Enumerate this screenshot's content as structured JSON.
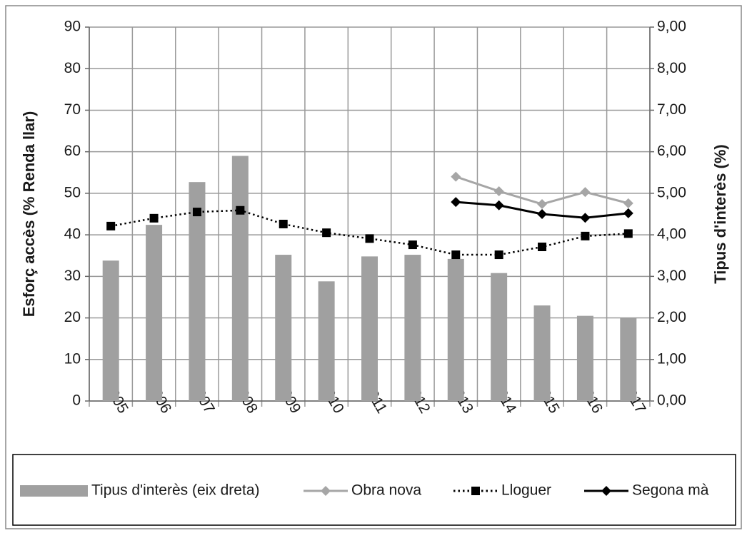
{
  "chart_data": {
    "type": "bar",
    "ylabel": "Esforç accès (% Renda llar)",
    "y2label": "Tipus d'interès (%)",
    "categories": [
      "2005",
      "2006",
      "2007",
      "2008",
      "2009",
      "2010",
      "2011",
      "2012",
      "2013",
      "2014",
      "2015",
      "2016",
      "2017"
    ],
    "series": [
      {
        "name": "Tipus d'interès (eix dreta)",
        "type": "bar",
        "axis": "y2",
        "color": "#a0a0a0",
        "values": [
          3.38,
          4.24,
          5.27,
          5.9,
          3.52,
          2.88,
          3.48,
          3.52,
          3.42,
          3.08,
          2.3,
          2.05,
          2.0
        ]
      },
      {
        "name": "Obra nova",
        "type": "line",
        "marker": "diamond",
        "color": "#a6a6a6",
        "values": [
          null,
          null,
          null,
          null,
          null,
          null,
          null,
          null,
          54.0,
          50.5,
          47.4,
          50.3,
          47.6
        ]
      },
      {
        "name": "Lloguer",
        "type": "line",
        "marker": "square",
        "dash": "dotted",
        "color": "#000000",
        "values": [
          42.1,
          44.0,
          45.5,
          45.9,
          42.6,
          40.5,
          39.1,
          37.6,
          35.2,
          35.2,
          37.1,
          39.7,
          40.3
        ]
      },
      {
        "name": "Segona mà",
        "type": "line",
        "marker": "diamond",
        "color": "#000000",
        "values": [
          null,
          null,
          null,
          null,
          null,
          null,
          null,
          null,
          47.9,
          47.1,
          45.0,
          44.1,
          45.2
        ]
      }
    ],
    "ylim": [
      0,
      90
    ],
    "yticks": [
      0,
      10,
      20,
      30,
      40,
      50,
      60,
      70,
      80,
      90
    ],
    "y2lim": [
      0,
      9
    ],
    "y2ticks": [
      {
        "value": 0,
        "label": "0,00"
      },
      {
        "value": 1,
        "label": "1,00"
      },
      {
        "value": 2,
        "label": "2,00"
      },
      {
        "value": 3,
        "label": "3,00"
      },
      {
        "value": 4,
        "label": "4,00"
      },
      {
        "value": 5,
        "label": "5,00"
      },
      {
        "value": 6,
        "label": "6,00"
      },
      {
        "value": 7,
        "label": "7,00"
      },
      {
        "value": 8,
        "label": "8,00"
      },
      {
        "value": 9,
        "label": "9,00"
      }
    ],
    "grid": true,
    "legend": "bottom"
  }
}
